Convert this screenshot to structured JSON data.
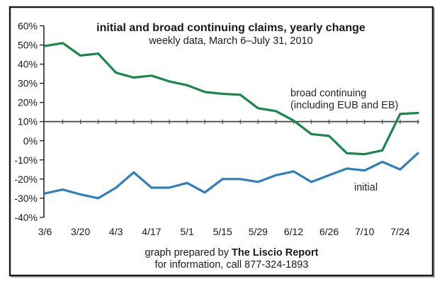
{
  "figure": {
    "title": "initial and broad continuing claims, yearly change",
    "subtitle": "weekly data, March 6–July 31, 2010",
    "footer": {
      "prepared_prefix": "graph prepared by ",
      "prepared_brand": "The Liscio Report",
      "info_line": "for information, call 877-324-1893"
    }
  },
  "chart_data": {
    "type": "line",
    "title": "initial and broad continuing claims, yearly change",
    "subtitle": "weekly data, March 6-July 31, 2010",
    "x": [
      "3/6",
      "3/13",
      "3/20",
      "3/27",
      "4/3",
      "4/10",
      "4/17",
      "4/24",
      "5/1",
      "5/8",
      "5/15",
      "5/22",
      "5/29",
      "6/5",
      "6/12",
      "6/19",
      "6/26",
      "7/3",
      "7/10",
      "7/17",
      "7/24",
      "7/31"
    ],
    "x_tick_labels": [
      "3/6",
      "3/20",
      "4/3",
      "4/17",
      "5/1",
      "5/15",
      "5/29",
      "6/12",
      "6/26",
      "7/10",
      "7/24"
    ],
    "ylim": [
      -40,
      60
    ],
    "y_ticks": [
      {
        "value": 60,
        "label": "60%"
      },
      {
        "value": 50,
        "label": "50%"
      },
      {
        "value": 40,
        "label": "40%"
      },
      {
        "value": 30,
        "label": "30%"
      },
      {
        "value": 20,
        "label": "20%"
      },
      {
        "value": 10,
        "label": "10%"
      },
      {
        "value": 0,
        "label": "0%"
      },
      {
        "value": -10,
        "label": "-10%"
      },
      {
        "value": -20,
        "label": "-20%"
      },
      {
        "value": -30,
        "label": "-30%"
      },
      {
        "value": -40,
        "label": "-40%"
      }
    ],
    "baseline_value": 10,
    "grid": false,
    "legend_position": "inline-annotations",
    "series": [
      {
        "name": "broad continuing (including EUB and EB)",
        "color": "#17874b",
        "values": [
          49.5,
          51,
          44.5,
          45.5,
          35.5,
          33,
          34,
          31,
          29,
          25.5,
          24.5,
          24,
          17,
          15.5,
          10.5,
          3.5,
          2.5,
          -6.5,
          -7,
          -5,
          14,
          14.5
        ]
      },
      {
        "name": "initial",
        "color": "#2e7fbe",
        "values": [
          -27.5,
          -25.5,
          -28,
          -30,
          -24.5,
          -16.5,
          -24.5,
          -24.5,
          -22,
          -27,
          -20,
          -20,
          -21.5,
          -18,
          -16,
          -21.5,
          -18,
          -14.5,
          -15.5,
          -11,
          -15,
          -6.5
        ]
      }
    ],
    "annotations": [
      {
        "text": "broad continuing",
        "x": 410,
        "y": 136,
        "anchor": "start"
      },
      {
        "text": "(including EUB and EB)",
        "x": 410,
        "y": 153,
        "anchor": "start"
      },
      {
        "text": "initial",
        "x": 500,
        "y": 269,
        "anchor": "start"
      }
    ]
  }
}
